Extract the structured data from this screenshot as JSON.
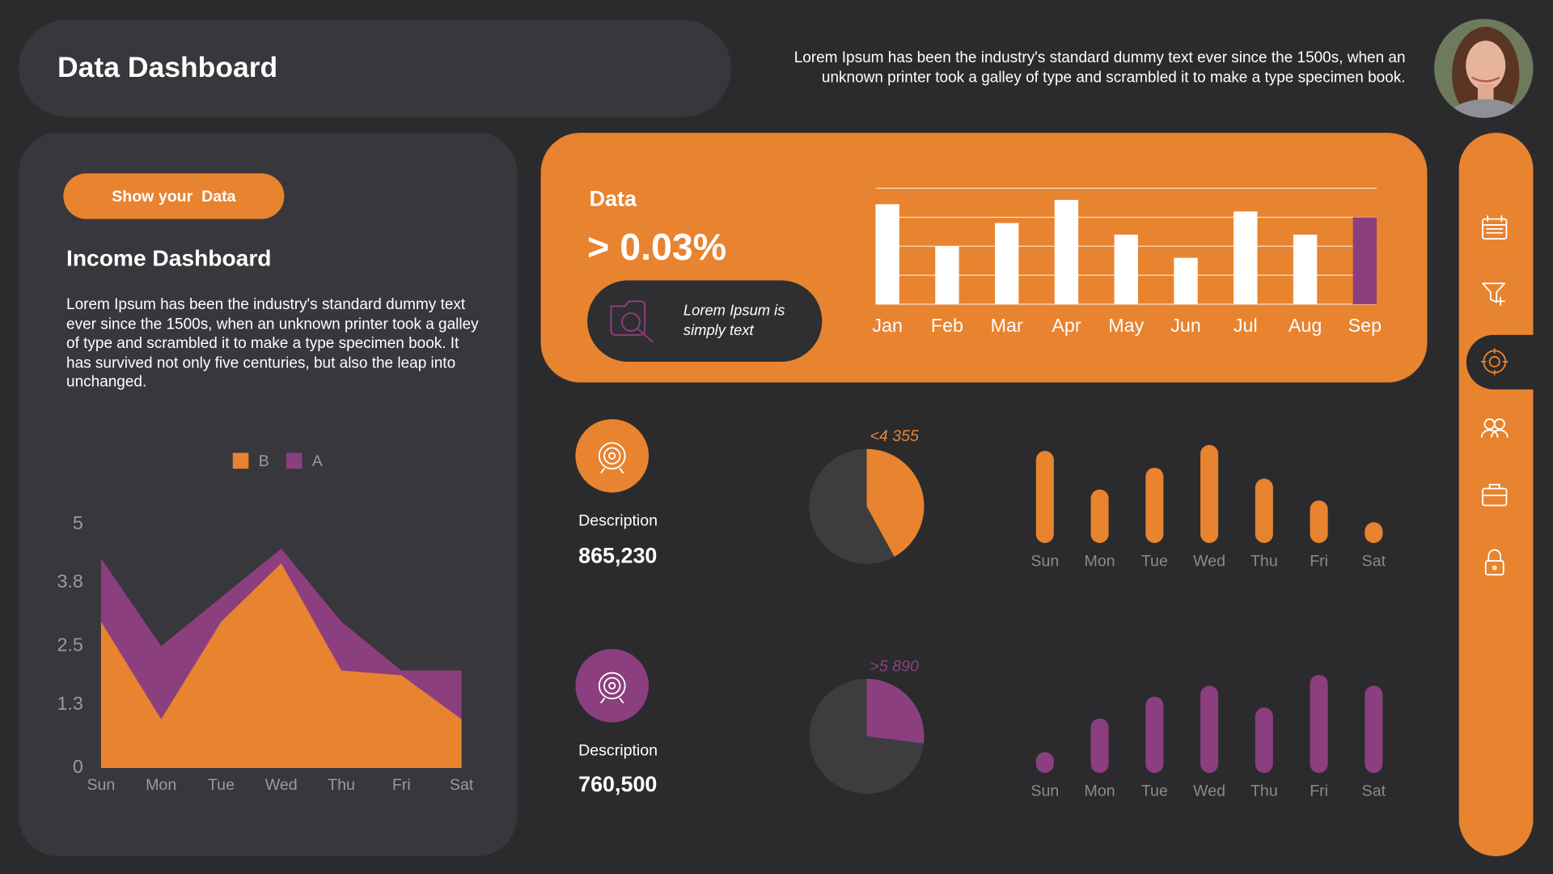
{
  "header": {
    "title": "Data Dashboard",
    "text": "Lorem Ipsum has been the industry's standard dummy text ever since the 1500s, when an unknown printer took a galley of type and scrambled it to make a type specimen book."
  },
  "income_panel": {
    "button": "Show your  Data",
    "title": "Income Dashboard",
    "text": "Lorem Ipsum has been the industry's standard dummy text ever since the 1500s, when an unknown printer took a galley of type and scrambled it to make a type specimen book. It has survived not only five centuries, but also the leap into unchanged."
  },
  "data_card": {
    "title": "Data",
    "value": "> 0.03%",
    "note": "Lorem Ipsum is simply text"
  },
  "descriptions": [
    {
      "label": "Description",
      "value": "865,230"
    },
    {
      "label": "Description",
      "value": "760,500"
    }
  ],
  "chart_data": [
    {
      "type": "area",
      "categories": [
        "Sun",
        "Mon",
        "Tue",
        "Wed",
        "Thu",
        "Fri",
        "Sat"
      ],
      "series": [
        {
          "name": "B",
          "color": "#e8832f",
          "values": [
            3.0,
            1.0,
            3.0,
            4.2,
            2.0,
            1.9,
            1.0
          ]
        },
        {
          "name": "A",
          "color": "#8b3f7f",
          "values": [
            4.3,
            2.5,
            3.5,
            4.5,
            3.0,
            2.0,
            2.0
          ]
        }
      ],
      "ylim": [
        0,
        5
      ],
      "yticks": [
        0,
        1.3,
        2.5,
        3.8,
        5
      ]
    },
    {
      "type": "bar",
      "categories": [
        "Jan",
        "Feb",
        "Mar",
        "Apr",
        "May",
        "Jun",
        "Jul",
        "Aug",
        "Sep"
      ],
      "values": [
        3.45,
        2.0,
        2.8,
        3.6,
        2.4,
        1.6,
        3.2,
        2.4,
        3.0
      ],
      "colors": [
        "#ffffff",
        "#ffffff",
        "#ffffff",
        "#ffffff",
        "#ffffff",
        "#ffffff",
        "#ffffff",
        "#ffffff",
        "#8b3f7f"
      ],
      "ylim": [
        0,
        4
      ],
      "yticks": [
        0,
        1,
        2,
        3,
        4
      ],
      "grid": true
    },
    {
      "type": "pie",
      "values": [
        42,
        58
      ],
      "colors": [
        "#e8832f",
        "#3d3d40"
      ],
      "annotation": "<4 355"
    },
    {
      "type": "bar",
      "categories": [
        "Sun",
        "Mon",
        "Tue",
        "Wed",
        "Thu",
        "Fri",
        "Sat"
      ],
      "values": [
        9.3,
        5.4,
        7.6,
        9.9,
        6.5,
        4.3,
        2.1
      ],
      "color": "#e8832f",
      "ylim": [
        0,
        10
      ]
    },
    {
      "type": "pie",
      "values": [
        27,
        73
      ],
      "colors": [
        "#8b3f7f",
        "#3d3d40"
      ],
      "annotation": ">5 890"
    },
    {
      "type": "bar",
      "categories": [
        "Sun",
        "Mon",
        "Tue",
        "Wed",
        "Thu",
        "Fri",
        "Sat"
      ],
      "values": [
        2.1,
        5.5,
        7.7,
        8.8,
        6.6,
        9.9,
        8.8
      ],
      "color": "#8b3f7f",
      "ylim": [
        0,
        10
      ]
    }
  ]
}
